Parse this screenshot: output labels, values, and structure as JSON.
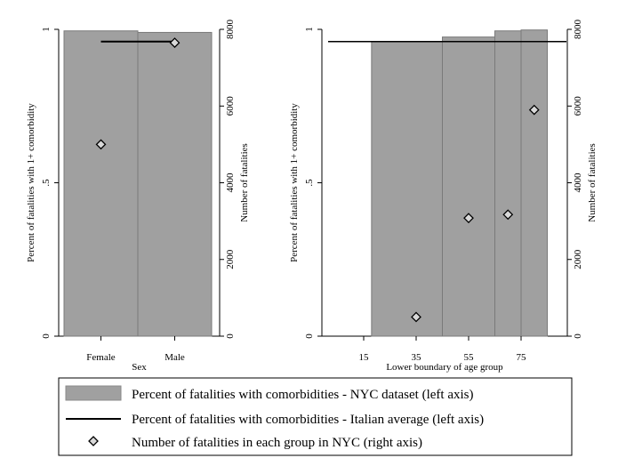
{
  "colors": {
    "bar": "#a0a0a0",
    "bar_edge": "#7a7a7a",
    "line": "#000000",
    "marker": "#d9d9d9",
    "marker_edge": "#000000"
  },
  "legend": {
    "items": [
      {
        "icon": "gray-bar",
        "label": "Percent of fatalities with comorbidities - NYC dataset (left axis)"
      },
      {
        "icon": "black-line",
        "label": "Percent of fatalities with comorbidities - Italian average (left axis)"
      },
      {
        "icon": "diamond-marker",
        "label": "Number of fatalities in each group in NYC (right axis)"
      }
    ]
  },
  "chart_data": [
    {
      "type": "bar",
      "xlabel": "Sex",
      "ylabel_left": "Percent of fatalities with 1+ comorbidity",
      "ylabel_right": "Number of fatalities",
      "ylim_left": [
        0,
        1
      ],
      "ylim_right": [
        0,
        8000
      ],
      "left_ticks": [
        "0",
        ".5",
        "1"
      ],
      "right_ticks": [
        "0",
        "2000",
        "4000",
        "6000",
        "8000"
      ],
      "categories": [
        "Female",
        "Male"
      ],
      "bars": [
        0.995,
        0.99
      ],
      "italian_average": {
        "x_range": [
          "Female",
          "Male"
        ],
        "value": 0.96
      },
      "fatalities": [
        5000,
        7650
      ]
    },
    {
      "type": "bar",
      "xlabel": "Lower boundary of age group",
      "ylabel_left": "Percent of fatalities with 1+ comorbidity",
      "ylabel_right": "Number of fatalities",
      "ylim_left": [
        0,
        1
      ],
      "ylim_right": [
        0,
        8000
      ],
      "xlim": [
        0,
        100
      ],
      "x_ticks": [
        "15",
        "35",
        "55",
        "75"
      ],
      "left_ticks": [
        "0",
        ".5",
        "1"
      ],
      "right_ticks": [
        "0",
        "2000",
        "4000",
        "6000",
        "8000"
      ],
      "bars": [
        {
          "x0": 18,
          "x1": 45,
          "value": 0.96
        },
        {
          "x0": 45,
          "x1": 65,
          "value": 0.975
        },
        {
          "x0": 65,
          "x1": 75,
          "value": 0.995
        },
        {
          "x0": 75,
          "x1": 85,
          "value": 0.998
        }
      ],
      "italian_average": {
        "value": 0.96
      },
      "fatalities": [
        {
          "x": 35,
          "value": 500
        },
        {
          "x": 55,
          "value": 3080
        },
        {
          "x": 70,
          "value": 3170
        },
        {
          "x": 80,
          "value": 5900
        }
      ]
    }
  ]
}
